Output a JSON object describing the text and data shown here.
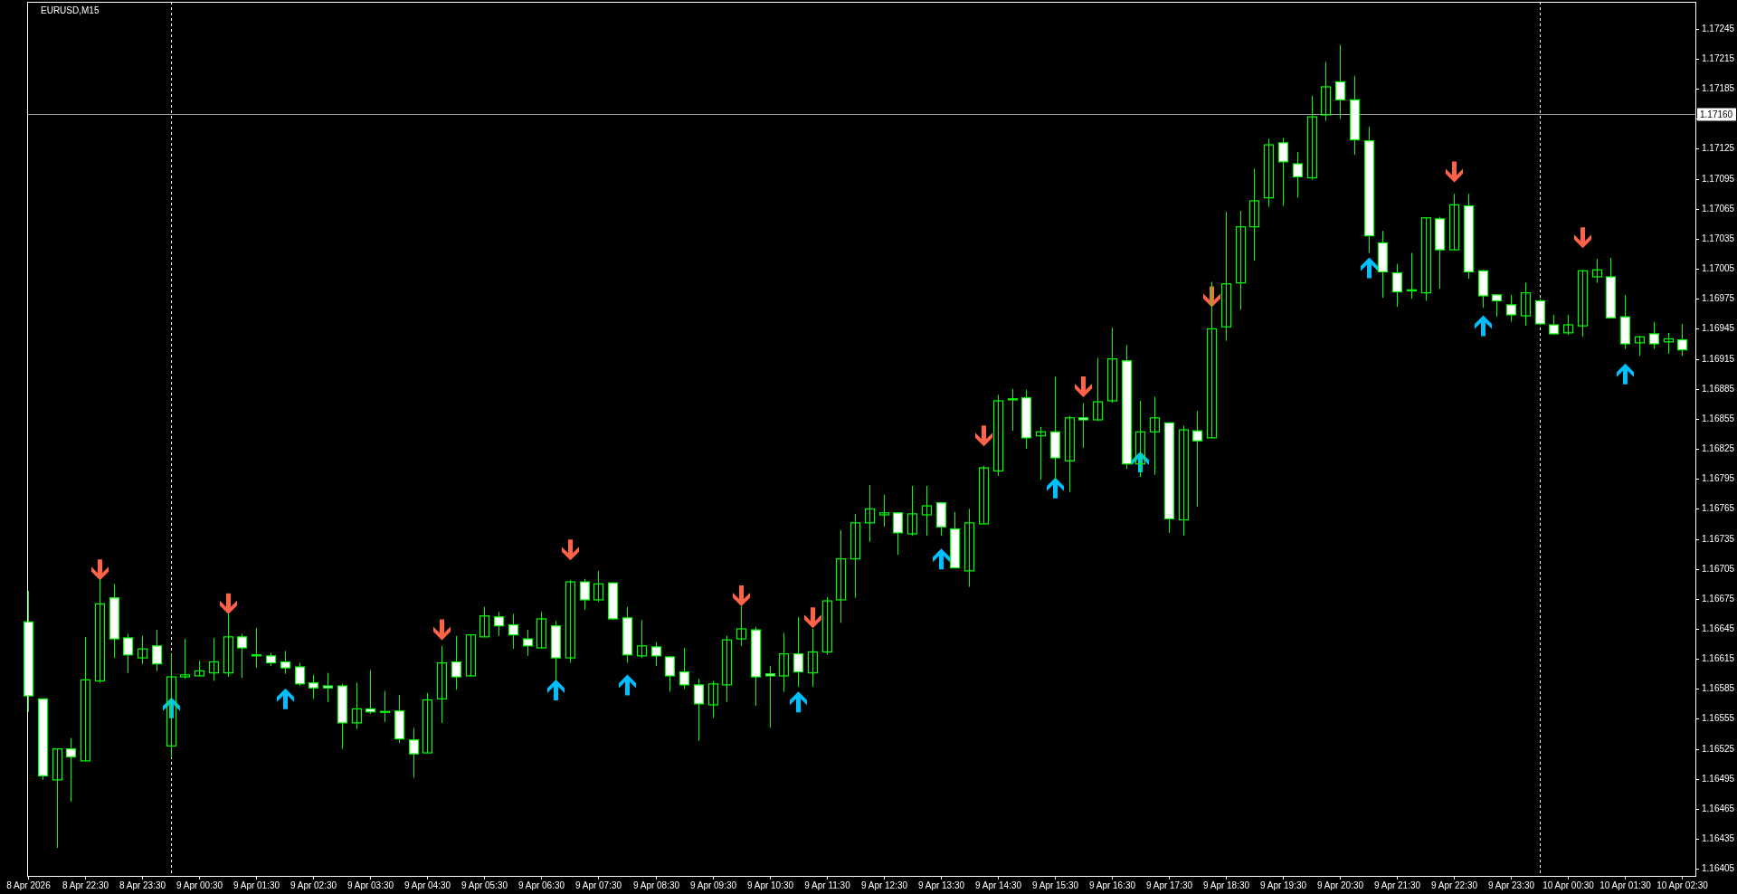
{
  "chart_data": {
    "type": "candlestick",
    "title": "EURUSD,M15",
    "x": [
      "2026-04-08T21:30",
      "2026-04-08T21:45",
      "2026-04-08T22:00",
      "2026-04-08T22:15",
      "2026-04-08T22:30",
      "2026-04-08T22:45",
      "2026-04-08T23:00",
      "2026-04-08T23:15",
      "2026-04-08T23:30",
      "2026-04-08T23:45",
      "2026-04-09T00:00",
      "2026-04-09T00:15",
      "2026-04-09T00:30",
      "2026-04-09T00:45",
      "2026-04-09T01:00",
      "2026-04-09T01:15",
      "2026-04-09T01:30",
      "2026-04-09T01:45",
      "2026-04-09T02:00",
      "2026-04-09T02:15",
      "2026-04-09T02:30",
      "2026-04-09T02:45",
      "2026-04-09T03:00",
      "2026-04-09T03:15",
      "2026-04-09T03:30",
      "2026-04-09T03:45",
      "2026-04-09T04:00",
      "2026-04-09T04:15",
      "2026-04-09T04:30",
      "2026-04-09T04:45",
      "2026-04-09T05:00",
      "2026-04-09T05:15",
      "2026-04-09T05:30",
      "2026-04-09T05:45",
      "2026-04-09T06:00",
      "2026-04-09T06:15",
      "2026-04-09T06:30",
      "2026-04-09T06:45",
      "2026-04-09T07:00",
      "2026-04-09T07:15",
      "2026-04-09T07:30",
      "2026-04-09T07:45",
      "2026-04-09T08:00",
      "2026-04-09T08:15",
      "2026-04-09T08:30",
      "2026-04-09T08:45",
      "2026-04-09T09:00",
      "2026-04-09T09:15",
      "2026-04-09T09:30",
      "2026-04-09T09:45",
      "2026-04-09T10:00",
      "2026-04-09T10:15",
      "2026-04-09T10:30",
      "2026-04-09T10:45",
      "2026-04-09T11:00",
      "2026-04-09T11:15",
      "2026-04-09T11:30",
      "2026-04-09T11:45",
      "2026-04-09T12:00",
      "2026-04-09T12:15",
      "2026-04-09T12:30",
      "2026-04-09T12:45",
      "2026-04-09T13:00",
      "2026-04-09T13:15",
      "2026-04-09T13:30",
      "2026-04-09T13:45",
      "2026-04-09T14:00",
      "2026-04-09T14:15",
      "2026-04-09T14:30",
      "2026-04-09T14:45",
      "2026-04-09T15:00",
      "2026-04-09T15:15",
      "2026-04-09T15:30",
      "2026-04-09T15:45",
      "2026-04-09T16:00",
      "2026-04-09T16:15",
      "2026-04-09T16:30",
      "2026-04-09T16:45",
      "2026-04-09T17:00",
      "2026-04-09T17:15",
      "2026-04-09T17:30",
      "2026-04-09T17:45",
      "2026-04-09T18:00",
      "2026-04-09T18:15",
      "2026-04-09T18:30",
      "2026-04-09T18:45",
      "2026-04-09T19:00",
      "2026-04-09T19:15",
      "2026-04-09T19:30",
      "2026-04-09T19:45",
      "2026-04-09T20:00",
      "2026-04-09T20:15",
      "2026-04-09T20:30",
      "2026-04-09T20:45",
      "2026-04-09T21:00",
      "2026-04-09T21:15",
      "2026-04-09T21:30",
      "2026-04-09T21:45",
      "2026-04-09T22:00",
      "2026-04-09T22:15",
      "2026-04-09T22:30",
      "2026-04-09T22:45",
      "2026-04-09T23:00",
      "2026-04-09T23:15",
      "2026-04-09T23:30",
      "2026-04-09T23:45",
      "2026-04-10T00:00",
      "2026-04-10T00:15",
      "2026-04-10T00:30",
      "2026-04-10T00:45",
      "2026-04-10T01:00",
      "2026-04-10T01:15",
      "2026-04-10T01:30",
      "2026-04-10T01:45",
      "2026-04-10T02:00",
      "2026-04-10T02:15",
      "2026-04-10T02:30"
    ],
    "xlim": [
      "2026-04-08T21:29",
      "2026-04-10T02:44"
    ],
    "xticks": [
      {
        "value": "2026-04-08T21:30",
        "label": "8 Apr 2026"
      },
      {
        "value": "2026-04-08T22:30",
        "label": "8 Apr 22:30"
      },
      {
        "value": "2026-04-08T23:30",
        "label": "8 Apr 23:30"
      },
      {
        "value": "2026-04-09T00:30",
        "label": "9 Apr 00:30"
      },
      {
        "value": "2026-04-09T01:30",
        "label": "9 Apr 01:30"
      },
      {
        "value": "2026-04-09T02:30",
        "label": "9 Apr 02:30"
      },
      {
        "value": "2026-04-09T03:30",
        "label": "9 Apr 03:30"
      },
      {
        "value": "2026-04-09T04:30",
        "label": "9 Apr 04:30"
      },
      {
        "value": "2026-04-09T05:30",
        "label": "9 Apr 05:30"
      },
      {
        "value": "2026-04-09T06:30",
        "label": "9 Apr 06:30"
      },
      {
        "value": "2026-04-09T07:30",
        "label": "9 Apr 07:30"
      },
      {
        "value": "2026-04-09T08:30",
        "label": "9 Apr 08:30"
      },
      {
        "value": "2026-04-09T09:30",
        "label": "9 Apr 09:30"
      },
      {
        "value": "2026-04-09T10:30",
        "label": "9 Apr 10:30"
      },
      {
        "value": "2026-04-09T11:30",
        "label": "9 Apr 11:30"
      },
      {
        "value": "2026-04-09T12:30",
        "label": "9 Apr 12:30"
      },
      {
        "value": "2026-04-09T13:30",
        "label": "9 Apr 13:30"
      },
      {
        "value": "2026-04-09T14:30",
        "label": "9 Apr 14:30"
      },
      {
        "value": "2026-04-09T15:30",
        "label": "9 Apr 15:30"
      },
      {
        "value": "2026-04-09T16:30",
        "label": "9 Apr 16:30"
      },
      {
        "value": "2026-04-09T17:30",
        "label": "9 Apr 17:30"
      },
      {
        "value": "2026-04-09T18:30",
        "label": "9 Apr 18:30"
      },
      {
        "value": "2026-04-09T19:30",
        "label": "9 Apr 19:30"
      },
      {
        "value": "2026-04-09T20:30",
        "label": "9 Apr 20:30"
      },
      {
        "value": "2026-04-09T21:30",
        "label": "9 Apr 21:30"
      },
      {
        "value": "2026-04-09T22:30",
        "label": "9 Apr 22:30"
      },
      {
        "value": "2026-04-09T23:30",
        "label": "9 Apr 23:30"
      },
      {
        "value": "2026-04-10T00:30",
        "label": "10 Apr 00:30"
      },
      {
        "value": "2026-04-10T01:30",
        "label": "10 Apr 01:30"
      },
      {
        "value": "2026-04-10T02:30",
        "label": "10 Apr 02:30"
      }
    ],
    "ylim": [
      1.16398,
      1.17272
    ],
    "yticks": [
      1.16405,
      1.16435,
      1.16465,
      1.16495,
      1.16525,
      1.16555,
      1.16585,
      1.16615,
      1.16645,
      1.16675,
      1.16705,
      1.16735,
      1.16765,
      1.16795,
      1.16825,
      1.16855,
      1.16885,
      1.16915,
      1.16945,
      1.16975,
      1.17005,
      1.17035,
      1.17065,
      1.17095,
      1.17125,
      {
        "value": 1.17155,
        "label": null
      },
      1.17185,
      1.17215,
      1.17245
    ],
    "series": [
      {
        "color": "#00ff00",
        "colors": [
          "#ffffff",
          "#ffffff",
          null,
          "#ffffff",
          null,
          null,
          "#ffffff",
          "#ffffff",
          null,
          "#ffffff",
          null,
          null,
          null,
          null,
          null,
          "#ffffff",
          "#ffffff",
          "#ffffff",
          "#ffffff",
          "#ffffff",
          "#ffffff",
          "#ffffff",
          "#ffffff",
          null,
          "#ffffff",
          null,
          "#ffffff",
          "#ffffff",
          null,
          null,
          "#ffffff",
          null,
          null,
          "#ffffff",
          "#ffffff",
          "#ffffff",
          null,
          "#ffffff",
          null,
          "#ffffff",
          null,
          "#ffffff",
          "#ffffff",
          null,
          "#ffffff",
          "#ffffff",
          "#ffffff",
          "#ffffff",
          null,
          null,
          null,
          "#ffffff",
          "#ffffff",
          null,
          "#ffffff",
          null,
          null,
          null,
          null,
          null,
          null,
          "#ffffff",
          null,
          null,
          "#ffffff",
          "#ffffff",
          null,
          null,
          null,
          null,
          "#ffffff",
          null,
          "#ffffff",
          null,
          "#ffffff",
          null,
          null,
          "#ffffff",
          null,
          null,
          "#ffffff",
          null,
          "#ffffff",
          null,
          null,
          null,
          null,
          null,
          "#ffffff",
          "#ffffff",
          null,
          null,
          "#ffffff",
          "#ffffff",
          "#ffffff",
          "#ffffff",
          "#ffffff",
          null,
          null,
          "#ffffff",
          null,
          "#ffffff",
          "#ffffff",
          "#ffffff",
          "#ffffff",
          null,
          "#ffffff",
          "#ffffff",
          null,
          null,
          null,
          "#ffffff",
          "#ffffff",
          null,
          "#ffffff",
          null,
          "#ffffff"
        ],
        "ohlc": [
          [
            1.16652,
            1.16683,
            1.16562,
            1.16578
          ],
          [
            1.16575,
            1.16575,
            1.16494,
            1.16498
          ],
          [
            1.16494,
            1.16525,
            1.16426,
            1.16525
          ],
          [
            1.16525,
            1.16536,
            1.16472,
            1.16517
          ],
          [
            1.16513,
            1.16637,
            1.16513,
            1.16594
          ],
          [
            1.16593,
            1.16695,
            1.16591,
            1.1667
          ],
          [
            1.16676,
            1.1669,
            1.16616,
            1.16635
          ],
          [
            1.16636,
            1.1664,
            1.16601,
            1.16619
          ],
          [
            1.16616,
            1.16638,
            1.1661,
            1.16625
          ],
          [
            1.16628,
            1.16644,
            1.16603,
            1.1661
          ],
          [
            1.16528,
            1.1662,
            1.16516,
            1.16597
          ],
          [
            1.16597,
            1.16635,
            1.16595,
            1.16599
          ],
          [
            1.16598,
            1.16613,
            1.16598,
            1.16603
          ],
          [
            1.16601,
            1.16636,
            1.16593,
            1.16612
          ],
          [
            1.16601,
            1.1666,
            1.16597,
            1.16637
          ],
          [
            1.16637,
            1.1664,
            1.16596,
            1.16626
          ],
          [
            1.16619,
            1.16646,
            1.16606,
            1.16618
          ],
          [
            1.16618,
            1.16621,
            1.16608,
            1.16611
          ],
          [
            1.16612,
            1.16623,
            1.166,
            1.16606
          ],
          [
            1.16607,
            1.16611,
            1.16588,
            1.1659
          ],
          [
            1.16591,
            1.16599,
            1.16575,
            1.16586
          ],
          [
            1.16588,
            1.16601,
            1.16572,
            1.16586
          ],
          [
            1.16588,
            1.1659,
            1.16525,
            1.16551
          ],
          [
            1.16551,
            1.16591,
            1.16545,
            1.16565
          ],
          [
            1.16565,
            1.16604,
            1.1656,
            1.16562
          ],
          [
            1.16562,
            1.16583,
            1.16552,
            1.16562
          ],
          [
            1.16563,
            1.16579,
            1.16531,
            1.16535
          ],
          [
            1.16534,
            1.16546,
            1.16496,
            1.1652
          ],
          [
            1.16521,
            1.16581,
            1.16521,
            1.16574
          ],
          [
            1.16575,
            1.16628,
            1.16551,
            1.16611
          ],
          [
            1.16612,
            1.16638,
            1.16584,
            1.16597
          ],
          [
            1.16598,
            1.16639,
            1.16598,
            1.16639
          ],
          [
            1.16637,
            1.16667,
            1.16637,
            1.16658
          ],
          [
            1.16657,
            1.16662,
            1.16638,
            1.16648
          ],
          [
            1.16649,
            1.1666,
            1.16625,
            1.16639
          ],
          [
            1.16635,
            1.16644,
            1.16618,
            1.16628
          ],
          [
            1.16626,
            1.16662,
            1.16626,
            1.16655
          ],
          [
            1.16648,
            1.16653,
            1.16594,
            1.16616
          ],
          [
            1.16616,
            1.16694,
            1.16611,
            1.16692
          ],
          [
            1.16692,
            1.16695,
            1.16664,
            1.16674
          ],
          [
            1.16674,
            1.16703,
            1.16672,
            1.1669
          ],
          [
            1.16691,
            1.16691,
            1.16654,
            1.16655
          ],
          [
            1.16656,
            1.16667,
            1.16611,
            1.16619
          ],
          [
            1.16618,
            1.16654,
            1.16616,
            1.16628
          ],
          [
            1.16627,
            1.16632,
            1.16608,
            1.16618
          ],
          [
            1.16617,
            1.16618,
            1.16582,
            1.16598
          ],
          [
            1.16602,
            1.16626,
            1.16585,
            1.16589
          ],
          [
            1.16589,
            1.16595,
            1.16533,
            1.1657
          ],
          [
            1.16569,
            1.16593,
            1.16556,
            1.1659
          ],
          [
            1.16589,
            1.16638,
            1.16572,
            1.16634
          ],
          [
            1.16635,
            1.16668,
            1.16628,
            1.16645
          ],
          [
            1.16644,
            1.16647,
            1.16568,
            1.16597
          ],
          [
            1.166,
            1.16608,
            1.16546,
            1.16598
          ],
          [
            1.16598,
            1.16641,
            1.16582,
            1.1662
          ],
          [
            1.1662,
            1.16657,
            1.16587,
            1.16602
          ],
          [
            1.16601,
            1.16645,
            1.16587,
            1.16622
          ],
          [
            1.16622,
            1.16677,
            1.16619,
            1.16673
          ],
          [
            1.16674,
            1.16744,
            1.16651,
            1.16715
          ],
          [
            1.16715,
            1.1676,
            1.16676,
            1.16751
          ],
          [
            1.16751,
            1.16789,
            1.16732,
            1.16765
          ],
          [
            1.16759,
            1.16779,
            1.16747,
            1.16761
          ],
          [
            1.16761,
            1.16761,
            1.16719,
            1.16741
          ],
          [
            1.1674,
            1.16788,
            1.16738,
            1.1676
          ],
          [
            1.16759,
            1.16788,
            1.16738,
            1.16768
          ],
          [
            1.16771,
            1.16771,
            1.16738,
            1.16747
          ],
          [
            1.16745,
            1.16762,
            1.16706,
            1.16706
          ],
          [
            1.16703,
            1.16765,
            1.16687,
            1.16751
          ],
          [
            1.1675,
            1.16808,
            1.1675,
            1.16806
          ],
          [
            1.16803,
            1.16879,
            1.16798,
            1.16873
          ],
          [
            1.16874,
            1.16885,
            1.16843,
            1.16875
          ],
          [
            1.16876,
            1.16884,
            1.16825,
            1.16836
          ],
          [
            1.16838,
            1.16847,
            1.16794,
            1.16842
          ],
          [
            1.16842,
            1.16897,
            1.16794,
            1.16816
          ],
          [
            1.16813,
            1.16858,
            1.16782,
            1.16856
          ],
          [
            1.16856,
            1.16871,
            1.16826,
            1.16854
          ],
          [
            1.16854,
            1.16916,
            1.16853,
            1.16872
          ],
          [
            1.16873,
            1.16946,
            1.16871,
            1.16915
          ],
          [
            1.16913,
            1.16929,
            1.16805,
            1.1681
          ],
          [
            1.1681,
            1.16873,
            1.16797,
            1.16842
          ],
          [
            1.16842,
            1.16877,
            1.16799,
            1.16856
          ],
          [
            1.16851,
            1.16851,
            1.16741,
            1.16755
          ],
          [
            1.16754,
            1.16848,
            1.16738,
            1.16844
          ],
          [
            1.16843,
            1.16863,
            1.16767,
            1.16833
          ],
          [
            1.16836,
            1.16992,
            1.16836,
            1.16945
          ],
          [
            1.16947,
            1.17062,
            1.16933,
            1.1699
          ],
          [
            1.16991,
            1.17063,
            1.16964,
            1.17047
          ],
          [
            1.17047,
            1.17105,
            1.17013,
            1.17073
          ],
          [
            1.17076,
            1.17135,
            1.17067,
            1.17129
          ],
          [
            1.17131,
            1.17136,
            1.17068,
            1.17112
          ],
          [
            1.1711,
            1.17122,
            1.17076,
            1.17097
          ],
          [
            1.17096,
            1.17178,
            1.17094,
            1.17157
          ],
          [
            1.17159,
            1.17212,
            1.17153,
            1.17187
          ],
          [
            1.17192,
            1.17229,
            1.17155,
            1.17174
          ],
          [
            1.17174,
            1.17198,
            1.17119,
            1.17134
          ],
          [
            1.17133,
            1.17147,
            1.17021,
            1.17038
          ],
          [
            1.17031,
            1.17043,
            1.16976,
            1.17002
          ],
          [
            1.17001,
            1.1701,
            1.16967,
            1.16982
          ],
          [
            1.16983,
            1.17021,
            1.16975,
            1.16984
          ],
          [
            1.16981,
            1.17056,
            1.16973,
            1.17056
          ],
          [
            1.17055,
            1.17057,
            1.16985,
            1.17024
          ],
          [
            1.17024,
            1.1708,
            1.17024,
            1.17069
          ],
          [
            1.17068,
            1.1708,
            1.16995,
            1.17002
          ],
          [
            1.17003,
            1.17004,
            1.16966,
            1.16978
          ],
          [
            1.16979,
            1.16979,
            1.16957,
            1.16973
          ],
          [
            1.16969,
            1.16979,
            1.16952,
            1.16959
          ],
          [
            1.16958,
            1.16991,
            1.16948,
            1.16981
          ],
          [
            1.16973,
            1.16975,
            1.1695,
            1.1695
          ],
          [
            1.16949,
            1.16959,
            1.16939,
            1.1694
          ],
          [
            1.16941,
            1.16959,
            1.16939,
            1.16949
          ],
          [
            1.16948,
            1.17004,
            1.16937,
            1.17003
          ],
          [
            1.16997,
            1.17015,
            1.16991,
            1.17004
          ],
          [
            1.16997,
            1.17016,
            1.16956,
            1.16956
          ],
          [
            1.16957,
            1.16979,
            1.16925,
            1.1693
          ],
          [
            1.16931,
            1.16938,
            1.16918,
            1.16937
          ],
          [
            1.1694,
            1.16952,
            1.16925,
            1.1693
          ],
          [
            1.16932,
            1.16941,
            1.1692,
            1.16935
          ],
          [
            1.16934,
            1.1695,
            1.16918,
            1.16924
          ]
        ]
      },
      {
        "type": "scatter",
        "color": "#ff6347",
        "marker": "triangle",
        "x": [
          "2026-04-08T22:45",
          "2026-04-09T01:00",
          "2026-04-09T04:45",
          "2026-04-09T07:00",
          "2026-04-09T10:00",
          "2026-04-09T11:15",
          "2026-04-09T14:15",
          "2026-04-09T16:00",
          "2026-04-09T18:15",
          "2026-04-09T22:30",
          "2026-04-10T00:45"
        ],
        "values": [
          1.16704,
          1.1667,
          1.16644,
          1.16724,
          1.16678,
          1.16656,
          1.16838,
          1.16887,
          1.16977,
          1.17102,
          1.17036
        ]
      },
      {
        "type": "scatter",
        "color": "#00bfff",
        "marker": "triangle",
        "x": [
          "2026-04-09T00:00",
          "2026-04-09T02:00",
          "2026-04-09T06:45",
          "2026-04-09T08:00",
          "2026-04-09T11:00",
          "2026-04-09T13:30",
          "2026-04-09T15:30",
          "2026-04-09T17:00",
          "2026-04-09T21:00",
          "2026-04-09T23:00",
          "2026-04-10T01:30"
        ],
        "values": [
          1.16566,
          1.16575,
          1.16584,
          1.16589,
          1.16572,
          1.16715,
          1.16786,
          1.16812,
          1.17006,
          1.16948,
          1.169
        ]
      }
    ],
    "ref_lines": [
      {
        "axis": "x",
        "value": "2026-04-09T00:00",
        "color": "#ffffff",
        "line_style": "dashed"
      },
      {
        "axis": "x",
        "value": "2026-04-10T00:00",
        "color": "#ffffff",
        "line_style": "dashed"
      },
      {
        "axis": "y",
        "value": 1.1716,
        "label": "1.17160",
        "color": "#a0a4b0"
      }
    ]
  }
}
